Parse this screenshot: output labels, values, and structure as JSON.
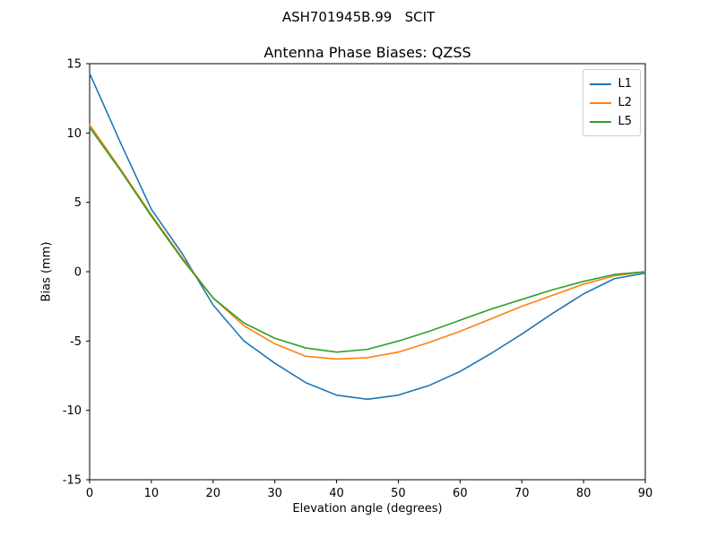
{
  "figure": {
    "suptitle": "ASH701945B.99   SCIT"
  },
  "chart_data": {
    "type": "line",
    "title": "Antenna Phase Biases: QZSS",
    "xlabel": "Elevation angle (degrees)",
    "ylabel": "Bias (mm)",
    "xlim": [
      0,
      90
    ],
    "ylim": [
      -15,
      15
    ],
    "xticks": [
      0,
      10,
      20,
      30,
      40,
      50,
      60,
      70,
      80,
      90
    ],
    "yticks": [
      -15,
      -10,
      -5,
      0,
      5,
      10,
      15
    ],
    "grid": false,
    "legend_position": "upper right",
    "x": [
      0,
      5,
      10,
      15,
      20,
      25,
      30,
      35,
      40,
      45,
      50,
      55,
      60,
      65,
      70,
      75,
      80,
      85,
      90
    ],
    "series": [
      {
        "name": "L1",
        "color": "#1f77b4",
        "values": [
          14.3,
          9.3,
          4.5,
          1.3,
          -2.4,
          -5.0,
          -6.6,
          -8.0,
          -8.9,
          -9.2,
          -8.9,
          -8.2,
          -7.2,
          -5.9,
          -4.5,
          -3.0,
          -1.6,
          -0.5,
          -0.1
        ]
      },
      {
        "name": "L2",
        "color": "#ff7f0e",
        "values": [
          10.6,
          7.4,
          4.1,
          1.0,
          -1.9,
          -3.9,
          -5.2,
          -6.1,
          -6.3,
          -6.2,
          -5.8,
          -5.1,
          -4.3,
          -3.4,
          -2.5,
          -1.7,
          -0.9,
          -0.3,
          0.0
        ]
      },
      {
        "name": "L5",
        "color": "#2ca02c",
        "values": [
          10.4,
          7.3,
          4.0,
          0.9,
          -1.9,
          -3.7,
          -4.8,
          -5.5,
          -5.8,
          -5.6,
          -5.0,
          -4.3,
          -3.5,
          -2.7,
          -2.0,
          -1.3,
          -0.7,
          -0.2,
          0.0
        ]
      }
    ]
  }
}
